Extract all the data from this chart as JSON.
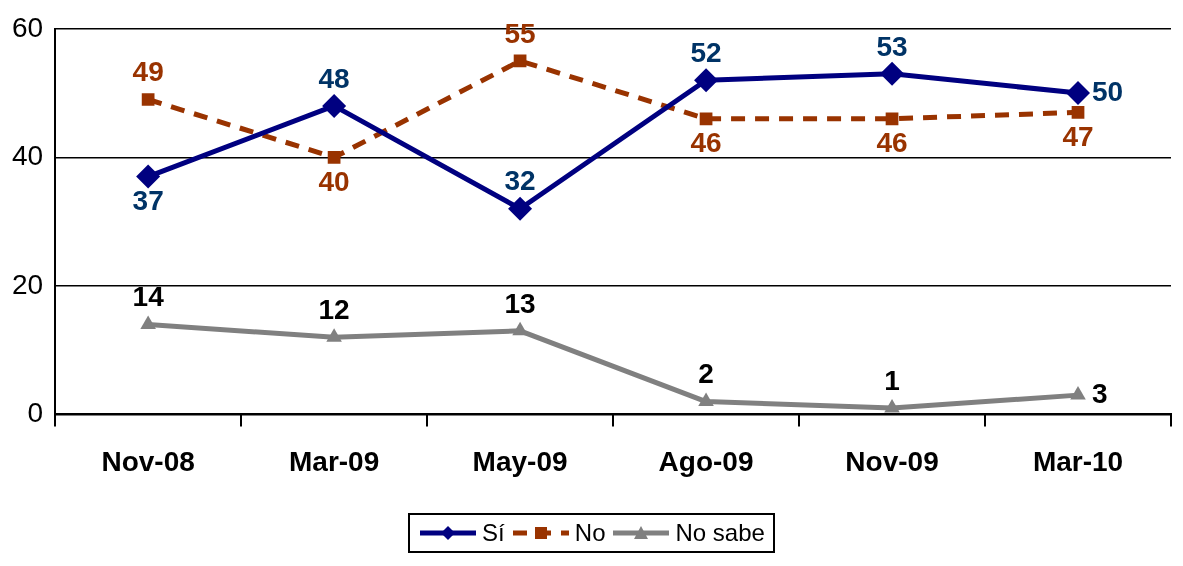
{
  "chart_data": {
    "type": "line",
    "categories": [
      "Nov-08",
      "Mar-09",
      "May-09",
      "Ago-09",
      "Nov-09",
      "Mar-10"
    ],
    "series": [
      {
        "name": "Sí",
        "color": "#000080",
        "values": [
          37,
          48,
          32,
          52,
          53,
          50
        ],
        "marker": "diamond",
        "line_style": "solid"
      },
      {
        "name": "No",
        "color": "#993300",
        "values": [
          49,
          40,
          55,
          46,
          46,
          47
        ],
        "marker": "square",
        "line_style": "dashed"
      },
      {
        "name": "No sabe",
        "color": "#808080",
        "values": [
          14,
          12,
          13,
          2,
          1,
          3
        ],
        "marker": "triangle",
        "line_style": "solid"
      }
    ],
    "ylim": [
      0,
      60
    ],
    "yticks": [
      0,
      20,
      40,
      60
    ],
    "grid": "y",
    "legend": "bottom",
    "data_labels": true
  }
}
